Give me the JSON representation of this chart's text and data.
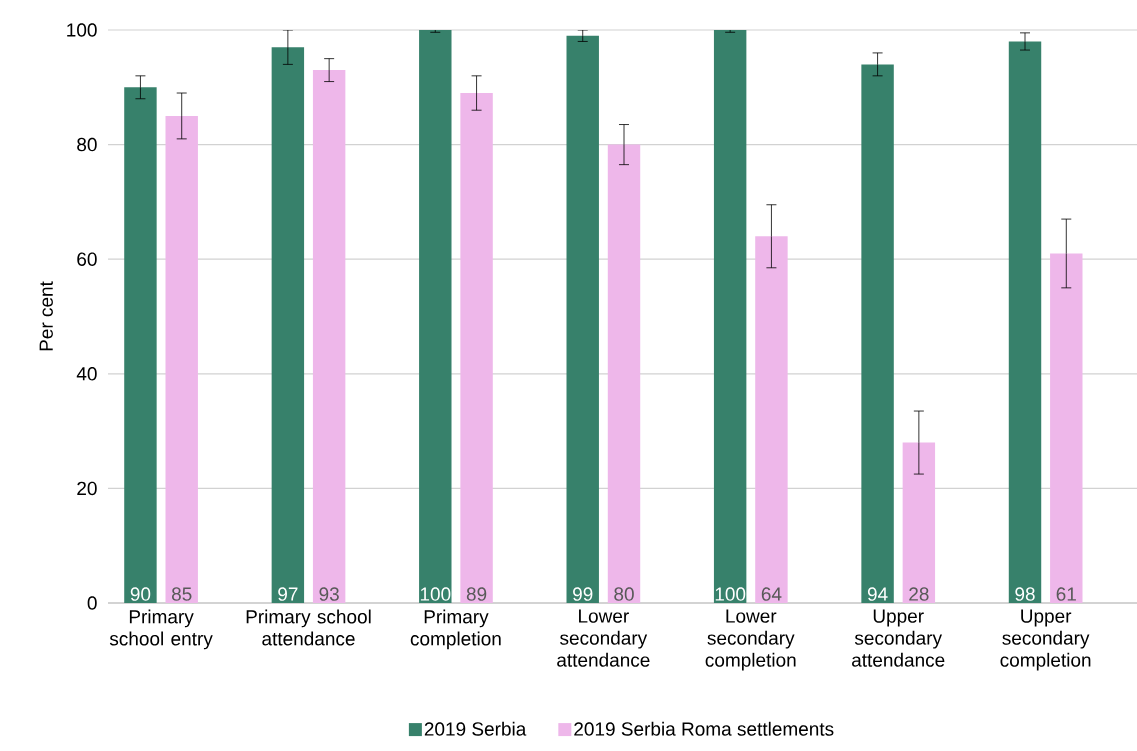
{
  "chart_data": {
    "type": "bar",
    "ylabel": "Per cent",
    "categories": [
      "Primary school entry",
      "Primary school attendance",
      "Primary completion",
      "Lower secondary attendance",
      "Lower secondary completion",
      "Upper secondary attendance",
      "Upper secondary completion"
    ],
    "series": [
      {
        "name": "2019 Serbia",
        "color": "#37816b",
        "values": [
          90,
          97,
          100,
          99,
          100,
          94,
          98
        ],
        "errors": [
          2,
          3,
          0.4,
          1,
          0.4,
          2,
          1.5
        ]
      },
      {
        "name": "2019 Serbia Roma settlements",
        "color": "#eeb7ea",
        "values": [
          85,
          93,
          89,
          80,
          64,
          28,
          61
        ],
        "errors": [
          4,
          2,
          3,
          3.5,
          5.5,
          5.5,
          6
        ]
      }
    ],
    "ylim": [
      0,
      100
    ],
    "yticks": [
      0,
      20,
      40,
      60,
      80,
      100
    ],
    "grid": "y",
    "legend": "bottom",
    "data_labels": true
  }
}
